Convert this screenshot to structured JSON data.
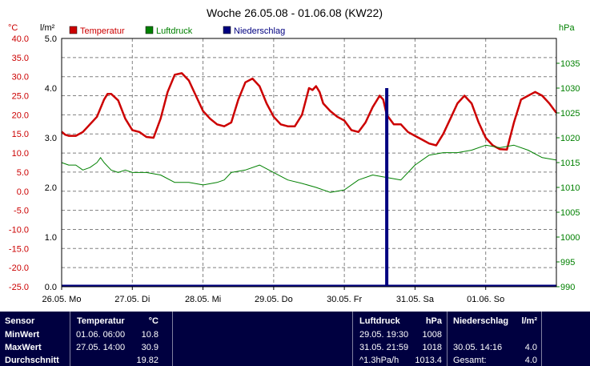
{
  "chart_data": {
    "type": "line",
    "title": "Woche 26.05.08 - 01.06.08 (KW22)",
    "x_tick_labels": [
      "26.05.  Mo",
      "27.05.  Di",
      "28.05.  Mi",
      "29.05.  Do",
      "30.05.  Fr",
      "31.05.  Sa",
      "01.06.  So"
    ],
    "x_range_days": [
      0,
      7
    ],
    "grid": true,
    "legend_position": "top-left",
    "axes": {
      "left_temp": {
        "unit": "°C",
        "ylim": [
          -25,
          40
        ],
        "ticks": [
          "40.0",
          "35.0",
          "30.0",
          "25.0",
          "20.0",
          "15.0",
          "10.0",
          "5.0",
          "0.0",
          "-5.0",
          "-10.0",
          "-15.0",
          "-20.0",
          "-25.0"
        ],
        "color": "#cc0000"
      },
      "left_rain": {
        "unit": "l/m²",
        "ylim": [
          0,
          5
        ],
        "ticks": [
          "5.0",
          "4.0",
          "3.0",
          "2.0",
          "1.0",
          "0.0"
        ],
        "color": "#000000"
      },
      "right_press": {
        "unit": "hPa",
        "ylim": [
          990,
          1040
        ],
        "ticks": [
          "1035",
          "1030",
          "1025",
          "1020",
          "1015",
          "1010",
          "1005",
          "1000",
          "995",
          "990"
        ],
        "color": "#008000"
      }
    },
    "series": [
      {
        "name": "Temperatur",
        "color": "#cc0000",
        "axis": "left_temp",
        "x": [
          0,
          0.05,
          0.1,
          0.2,
          0.3,
          0.4,
          0.5,
          0.6,
          0.65,
          0.7,
          0.8,
          0.9,
          1.0,
          1.1,
          1.2,
          1.3,
          1.4,
          1.5,
          1.6,
          1.7,
          1.8,
          1.9,
          2.0,
          2.1,
          2.2,
          2.3,
          2.4,
          2.5,
          2.6,
          2.7,
          2.8,
          2.9,
          3.0,
          3.1,
          3.2,
          3.3,
          3.4,
          3.5,
          3.55,
          3.6,
          3.65,
          3.7,
          3.8,
          3.9,
          4.0,
          4.1,
          4.2,
          4.3,
          4.4,
          4.5,
          4.55,
          4.6,
          4.7,
          4.8,
          4.9,
          5.0,
          5.1,
          5.2,
          5.3,
          5.4,
          5.5,
          5.6,
          5.7,
          5.8,
          5.9,
          6.0,
          6.1,
          6.2,
          6.3,
          6.4,
          6.5,
          6.6,
          6.7,
          6.8,
          6.9,
          7.0
        ],
        "y": [
          15.6,
          14.8,
          14.5,
          14.5,
          15.5,
          17.5,
          19.5,
          24.0,
          25.5,
          25.5,
          23.8,
          19.0,
          16.0,
          15.5,
          14.2,
          14.0,
          19.0,
          26.0,
          30.5,
          30.9,
          29.0,
          25.0,
          21.0,
          19.0,
          17.5,
          17.0,
          18.0,
          24.0,
          28.5,
          29.5,
          27.5,
          23.0,
          19.5,
          17.5,
          17.0,
          17.0,
          20.0,
          27.0,
          26.5,
          27.5,
          26.0,
          23.0,
          21.0,
          19.5,
          18.5,
          16.0,
          15.5,
          18.0,
          22.0,
          25.0,
          24.0,
          20.0,
          17.5,
          17.5,
          15.5,
          14.5,
          13.5,
          12.5,
          12.0,
          15.0,
          19.0,
          23.0,
          25.0,
          23.0,
          18.0,
          14.0,
          12.0,
          11.0,
          10.9,
          18.0,
          24.0,
          25.0,
          26.0,
          25.0,
          23.0,
          20.5
        ]
      },
      {
        "name": "Luftdruck",
        "color": "#008000",
        "axis": "right_press",
        "x": [
          0,
          0.1,
          0.2,
          0.3,
          0.4,
          0.5,
          0.55,
          0.6,
          0.7,
          0.8,
          0.9,
          1.0,
          1.2,
          1.4,
          1.6,
          1.8,
          2.0,
          2.2,
          2.3,
          2.4,
          2.6,
          2.8,
          3.0,
          3.2,
          3.4,
          3.6,
          3.8,
          4.0,
          4.2,
          4.4,
          4.6,
          4.8,
          5.0,
          5.2,
          5.4,
          5.6,
          5.8,
          6.0,
          6.2,
          6.4,
          6.6,
          6.8,
          7.0
        ],
        "y": [
          1015.0,
          1014.5,
          1014.5,
          1013.5,
          1014.0,
          1015.0,
          1016.0,
          1015.0,
          1013.5,
          1013.0,
          1013.5,
          1013.0,
          1013.0,
          1012.5,
          1011.0,
          1011.0,
          1010.5,
          1011.0,
          1011.5,
          1013.0,
          1013.5,
          1014.5,
          1013.0,
          1011.5,
          1010.8,
          1010.0,
          1009.0,
          1009.5,
          1011.5,
          1012.5,
          1012.0,
          1011.5,
          1014.5,
          1016.5,
          1017.0,
          1017.0,
          1017.5,
          1018.5,
          1018.0,
          1018.5,
          1017.5,
          1016.0,
          1015.5
        ]
      },
      {
        "name": "Niederschlag",
        "color": "#000080",
        "axis": "left_rain",
        "bars": [
          {
            "x": 4.6,
            "value": 4.0
          }
        ]
      }
    ]
  },
  "footer": {
    "header": {
      "sensor": "Sensor",
      "temp": "Temperatur",
      "temp_unit": "°C",
      "press": "Luftdruck",
      "press_unit": "hPa",
      "rain": "Niederschlag",
      "rain_unit": "l/m²"
    },
    "rows": [
      {
        "label": "MinWert",
        "temp_time": "01.06.  06:00",
        "temp_val": "10.8",
        "press_time": "29.05.  19:30",
        "press_val": "1008",
        "rain_time": "",
        "rain_val": ""
      },
      {
        "label": "MaxWert",
        "temp_time": "27.05.  14:00",
        "temp_val": "30.9",
        "press_time": "31.05.  21:59",
        "press_val": "1018",
        "rain_time": "30.05.  14:16",
        "rain_val": "4.0"
      },
      {
        "label": "Durchschnitt",
        "temp_time": "",
        "temp_val": "19.82",
        "press_time": "^1.3hPa/h",
        "press_val": "1013.4",
        "rain_time": "Gesamt:",
        "rain_val": "4.0"
      }
    ]
  }
}
